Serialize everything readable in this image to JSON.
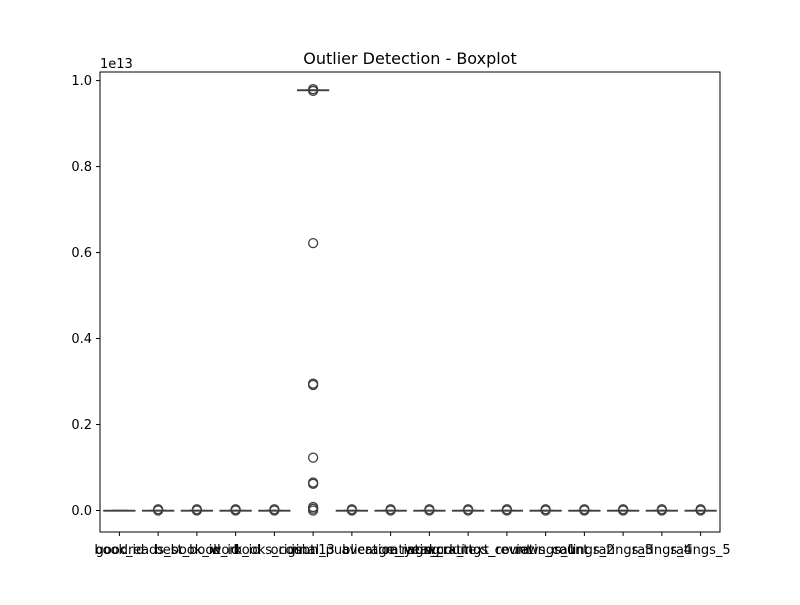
{
  "chart_data": {
    "type": "box",
    "title": "Outlier Detection - Boxplot",
    "scale_label": "1e13",
    "scale_factor": 10000000000000.0,
    "xlabel": "",
    "ylabel": "",
    "ylim": [
      -0.05,
      1.02
    ],
    "yticks": [
      0.0,
      0.2,
      0.4,
      0.6,
      0.8,
      1.0
    ],
    "ytick_labels": [
      "0.0",
      "0.2",
      "0.4",
      "0.6",
      "0.8",
      "1.0"
    ],
    "grid": false,
    "colors": {
      "box_edge": "#3f3f3f",
      "box_fill": "#ffffff",
      "frame": "#000000"
    },
    "categories": [
      "book_id",
      "goodreads_book_id",
      "best_book_id",
      "work_id",
      "books_count",
      "isbn13",
      "original_publication_year",
      "average_rating",
      "ratings_count",
      "work_ratings_count",
      "work_text_reviews_count",
      "ratings_1",
      "ratings_2",
      "ratings_3",
      "ratings_4",
      "ratings_5"
    ],
    "tick_labels": [
      "book_id",
      "goodreads_book_id",
      "best_book_id",
      "work_id",
      "books_count",
      "isbn13",
      "original_publication_year",
      "average_rating",
      "ratings_count",
      "work_ratings_count",
      "work_text_reviews_count",
      "ratings_1",
      "ratings_2",
      "ratings_3",
      "ratings_4",
      "ratings_5"
    ],
    "boxes": [
      {
        "q1": 0,
        "median": 0,
        "q3": 0,
        "whisker_low": 0,
        "whisker_high": 0,
        "outliers": []
      },
      {
        "q1": 0,
        "median": 0,
        "q3": 0,
        "whisker_low": 0,
        "whisker_high": 0,
        "outliers": [
          0.0,
          0.003
        ]
      },
      {
        "q1": 0,
        "median": 0,
        "q3": 0,
        "whisker_low": 0,
        "whisker_high": 0,
        "outliers": [
          0.0,
          0.003
        ]
      },
      {
        "q1": 0,
        "median": 0,
        "q3": 0,
        "whisker_low": 0,
        "whisker_high": 0,
        "outliers": [
          0.0,
          0.003
        ]
      },
      {
        "q1": 0,
        "median": 0,
        "q3": 0,
        "whisker_low": 0,
        "whisker_high": 0,
        "outliers": [
          0.0,
          0.003
        ]
      },
      {
        "q1": 0.978,
        "median": 0.978,
        "q3": 0.978,
        "whisker_low": 0.978,
        "whisker_high": 0.978,
        "outliers": [
          0.98,
          0.976,
          0.622,
          0.295,
          0.292,
          0.123,
          0.065,
          0.062,
          0.008,
          0.004,
          0.0
        ]
      },
      {
        "q1": 0,
        "median": 0,
        "q3": 0,
        "whisker_low": 0,
        "whisker_high": 0,
        "outliers": [
          0.0,
          0.003
        ]
      },
      {
        "q1": 0,
        "median": 0,
        "q3": 0,
        "whisker_low": 0,
        "whisker_high": 0,
        "outliers": [
          0.0,
          0.003
        ]
      },
      {
        "q1": 0,
        "median": 0,
        "q3": 0,
        "whisker_low": 0,
        "whisker_high": 0,
        "outliers": [
          0.0,
          0.003
        ]
      },
      {
        "q1": 0,
        "median": 0,
        "q3": 0,
        "whisker_low": 0,
        "whisker_high": 0,
        "outliers": [
          0.0,
          0.003
        ]
      },
      {
        "q1": 0,
        "median": 0,
        "q3": 0,
        "whisker_low": 0,
        "whisker_high": 0,
        "outliers": [
          0.0,
          0.003
        ]
      },
      {
        "q1": 0,
        "median": 0,
        "q3": 0,
        "whisker_low": 0,
        "whisker_high": 0,
        "outliers": [
          0.0,
          0.003
        ]
      },
      {
        "q1": 0,
        "median": 0,
        "q3": 0,
        "whisker_low": 0,
        "whisker_high": 0,
        "outliers": [
          0.0,
          0.003
        ]
      },
      {
        "q1": 0,
        "median": 0,
        "q3": 0,
        "whisker_low": 0,
        "whisker_high": 0,
        "outliers": [
          0.0,
          0.003
        ]
      },
      {
        "q1": 0,
        "median": 0,
        "q3": 0,
        "whisker_low": 0,
        "whisker_high": 0,
        "outliers": [
          0.0,
          0.003
        ]
      },
      {
        "q1": 0,
        "median": 0,
        "q3": 0,
        "whisker_low": 0,
        "whisker_high": 0,
        "outliers": [
          0.0,
          0.003
        ]
      }
    ]
  }
}
